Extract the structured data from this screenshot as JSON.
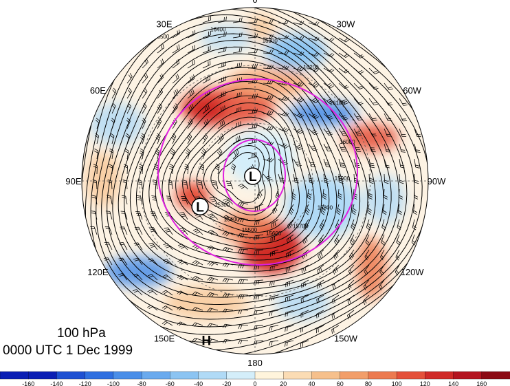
{
  "map": {
    "level": "100 hPa",
    "time": "0000 UTC 1 Dec 1999",
    "longitude_labels": [
      {
        "text": "0",
        "angle": 0
      },
      {
        "text": "30W",
        "angle": 30
      },
      {
        "text": "60W",
        "angle": 60
      },
      {
        "text": "90W",
        "angle": 90
      },
      {
        "text": "120W",
        "angle": 120
      },
      {
        "text": "150W",
        "angle": 150
      },
      {
        "text": "180",
        "angle": 180
      },
      {
        "text": "150E",
        "angle": 210
      },
      {
        "text": "120E",
        "angle": 240
      },
      {
        "text": "90E",
        "angle": 270
      },
      {
        "text": "60E",
        "angle": 300
      },
      {
        "text": "30E",
        "angle": 330
      }
    ],
    "pressure_systems": [
      {
        "symbol": "L",
        "angle": 335,
        "radius_frac": 0.03
      },
      {
        "symbol": "L",
        "angle": 245,
        "radius_frac": 0.35
      },
      {
        "symbol": "H",
        "angle": 197,
        "radius_frac": 0.96
      }
    ],
    "contour_labels": [
      "16500",
      "16400",
      "16300",
      "16200",
      "16100",
      "16000",
      "15900",
      "15800",
      "15700",
      "15600",
      "15500",
      "15400",
      "15300"
    ],
    "colorbar": {
      "ticks": [
        "-160",
        "-140",
        "-120",
        "-100",
        "-80",
        "-60",
        "-40",
        "-20",
        "0",
        "20",
        "40",
        "60",
        "80",
        "100",
        "120",
        "140",
        "160"
      ],
      "colors": [
        "#0a1eb4",
        "#1e50d2",
        "#2f6fe0",
        "#4a8ee8",
        "#6aaaee",
        "#8cc4f2",
        "#b0daf6",
        "#d4eefa",
        "#fff4dc",
        "#fbdcb4",
        "#f6c08c",
        "#f29e6a",
        "#ec7a50",
        "#e4503a",
        "#d02a28",
        "#b41420",
        "#8c0a14"
      ]
    }
  }
}
